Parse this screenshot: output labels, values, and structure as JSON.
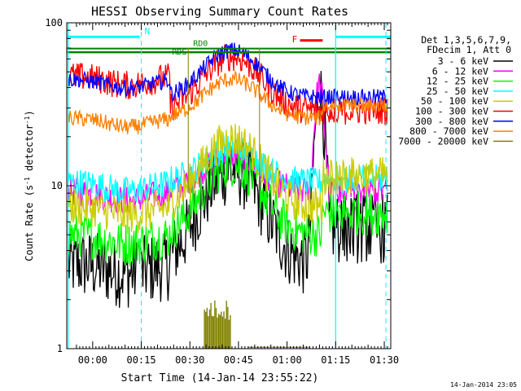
{
  "chart_data": {
    "type": "line",
    "title": "HESSI Observing Summary Count Rates",
    "xlabel": "Start Time (14-Jan-14 23:55:22)",
    "ylabel_main": "Count Rate (s",
    "ylabel_sup1": "-1",
    "ylabel_mid": " detector",
    "ylabel_sup2": "-1",
    "ylabel_end": ")",
    "yscale": "log",
    "ylim": [
      1,
      100
    ],
    "xlim_minutes": [
      -3,
      97
    ],
    "x_ticks": [
      {
        "label": "00:00",
        "minute": 5
      },
      {
        "label": "00:15",
        "minute": 20
      },
      {
        "label": "00:30",
        "minute": 35
      },
      {
        "label": "00:45",
        "minute": 50
      },
      {
        "label": "01:00",
        "minute": 65
      },
      {
        "label": "01:15",
        "minute": 80
      },
      {
        "label": "01:30",
        "minute": 95
      }
    ],
    "y_ticks": [
      {
        "label": "1",
        "value": 1
      },
      {
        "label": "10",
        "value": 10
      },
      {
        "label": "100",
        "value": 100
      }
    ],
    "legend_header": [
      "Det 1,3,5,6,7,9,",
      "FDecim 1, Att 0"
    ],
    "legend_position": "right",
    "series": [
      {
        "name": "3 - 6 keV",
        "color": "#000000",
        "base": 3.3,
        "peak": 12.5,
        "end": 5.5,
        "noise": 0.22,
        "burst": 35
      },
      {
        "name": "6 - 12 keV",
        "color": "#ff00ff",
        "base": 9.2,
        "peak": 15.5,
        "end": 9.3,
        "noise": 0.09,
        "burst": 33
      },
      {
        "name": "12 - 25 keV",
        "color": "#00ff00",
        "base": 5.0,
        "peak": 13.5,
        "end": 6.8,
        "noise": 0.14,
        "burst": 0
      },
      {
        "name": "25 - 50 keV",
        "color": "#00ffff",
        "base": 10.5,
        "peak": 17.0,
        "end": 11.0,
        "noise": 0.09,
        "burst": 0
      },
      {
        "name": "50 - 100 keV",
        "color": "#cccc00",
        "base": 7.5,
        "peak": 19.5,
        "end": 11.5,
        "noise": 0.12,
        "burst": 0
      },
      {
        "name": "100 - 300 keV",
        "color": "#ff0000",
        "base": 47,
        "peak": 62,
        "end": 29,
        "noise": 0.09,
        "burst": 0
      },
      {
        "name": "300 - 800 keV",
        "color": "#0000ff",
        "base": 45,
        "peak": 68,
        "end": 35,
        "noise": 0.05,
        "burst": 0
      },
      {
        "name": "800 - 7000 keV",
        "color": "#ff8000",
        "base": 26,
        "peak": 45,
        "end": 31,
        "noise": 0.05,
        "burst": 0
      },
      {
        "name": "7000 - 20000 keV",
        "color": "#808000",
        "base": 0,
        "peak": 0,
        "end": 0,
        "noise": 0,
        "burst": 0
      }
    ],
    "colors": {
      "saa_night": "#00ffff",
      "decim": "#008000",
      "flare": "#ff0000",
      "axis": "#000000"
    },
    "night_label": "N",
    "flare_label": "F",
    "rd0_label": "RD0",
    "rds_label": "RDS",
    "timestamp": "14-Jan-2014 23:05"
  }
}
